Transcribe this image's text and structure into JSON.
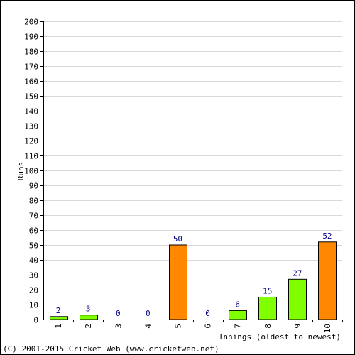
{
  "chart_data": {
    "type": "bar",
    "categories": [
      "1",
      "2",
      "3",
      "4",
      "5",
      "6",
      "7",
      "8",
      "9",
      "10"
    ],
    "values": [
      2,
      3,
      0,
      0,
      50,
      0,
      6,
      15,
      27,
      52
    ],
    "data_labels": [
      "2",
      "3",
      "0",
      "0",
      "50",
      "0",
      "6",
      "15",
      "27",
      "52"
    ],
    "ylabel": "Runs",
    "xlabel": "Innings (oldest to newest)",
    "ylim": [
      0,
      200
    ],
    "ytick_step": 10,
    "grid": true,
    "legend": "none",
    "colors": {
      "normal": "#80ff00",
      "fifty": "#ff8800",
      "label": "#000080",
      "grid": "#d8d8d8",
      "frame": "#000000"
    },
    "highlight_rule": "orange for scores of 50 or more"
  },
  "footer": {
    "credit": "(C) 2001-2015 Cricket Web (www.cricketweb.net)"
  }
}
